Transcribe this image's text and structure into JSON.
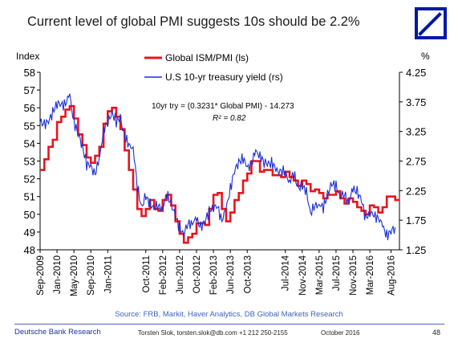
{
  "title": "Current level of global PMI suggests 10s should be 2.2%",
  "logo": {
    "name": "deutsche-bank-logo"
  },
  "colors": {
    "pmi": "#e8141e",
    "yield": "#1a2fd6",
    "brand": "#0018a8",
    "source": "#3f62c2"
  },
  "source": "Source: FRB, Markit, Haver Analytics, DB Global Markets Research",
  "footer": {
    "org": "Deutsche Bank Research",
    "contact": "Torsten Slok, torsten.slok@db.com +1 212 250-2155",
    "date": "October 2016",
    "page": "48"
  },
  "chart_data": {
    "type": "line",
    "y_left_label": "Index",
    "y_right_label": "%",
    "y_left_range": [
      48,
      58
    ],
    "y_right_range": [
      1.25,
      4.25
    ],
    "y_left_ticks": [
      "48",
      "49",
      "50",
      "51",
      "52",
      "53",
      "54",
      "55",
      "56",
      "57",
      "58"
    ],
    "y_right_ticks": [
      "1.25",
      "1.75",
      "2.25",
      "2.75",
      "3.25",
      "3.75",
      "4.25"
    ],
    "x_range": [
      "2009-09",
      "2016-10"
    ],
    "x_ticks": [
      "Sep-2009",
      "Jan-2010",
      "May-2010",
      "Sep-2010",
      "Jan-2011",
      "Oct-2011",
      "Feb-2012",
      "Jun-2012",
      "Oct-2012",
      "Feb-2013",
      "Jun-2013",
      "Oct-2013",
      "Jul-2014",
      "Nov-2014",
      "Mar-2015",
      "Jul-2015",
      "Nov-2015",
      "Mar-2016",
      "Aug-2016"
    ],
    "legend": {
      "placement": "top-left"
    },
    "annotation": {
      "equation": "10yr try = (0.3231* Global PMI) - 14.273",
      "r2": "R² = 0.82"
    },
    "series": [
      {
        "name": "Global ISM/PMI (ls)",
        "axis": "left",
        "x": [
          "2009-09",
          "2009-10",
          "2009-11",
          "2009-12",
          "2010-01",
          "2010-02",
          "2010-03",
          "2010-04",
          "2010-05",
          "2010-06",
          "2010-07",
          "2010-08",
          "2010-09",
          "2010-10",
          "2010-11",
          "2010-12",
          "2011-01",
          "2011-02",
          "2011-03",
          "2011-04",
          "2011-05",
          "2011-06",
          "2011-07",
          "2011-08",
          "2011-09",
          "2011-10",
          "2011-11",
          "2011-12",
          "2012-01",
          "2012-02",
          "2012-03",
          "2012-04",
          "2012-05",
          "2012-06",
          "2012-07",
          "2012-08",
          "2012-09",
          "2012-10",
          "2012-11",
          "2012-12",
          "2013-01",
          "2013-02",
          "2013-03",
          "2013-04",
          "2013-05",
          "2013-06",
          "2013-07",
          "2013-08",
          "2013-09",
          "2013-10",
          "2013-11",
          "2013-12",
          "2014-01",
          "2014-02",
          "2014-03",
          "2014-04",
          "2014-05",
          "2014-06",
          "2014-07",
          "2014-08",
          "2014-09",
          "2014-10",
          "2014-11",
          "2014-12",
          "2015-01",
          "2015-02",
          "2015-03",
          "2015-04",
          "2015-05",
          "2015-06",
          "2015-07",
          "2015-08",
          "2015-09",
          "2015-10",
          "2015-11",
          "2015-12",
          "2016-01",
          "2016-02",
          "2016-03",
          "2016-04",
          "2016-05",
          "2016-06",
          "2016-07",
          "2016-08",
          "2016-09"
        ],
        "values": [
          52.5,
          53.1,
          53.8,
          54.2,
          55.2,
          55.5,
          55.9,
          56.1,
          55.4,
          54.5,
          53.9,
          53.2,
          52.9,
          53.3,
          53.8,
          55.1,
          55.8,
          56.0,
          55.5,
          54.8,
          53.6,
          52.5,
          51.4,
          50.3,
          49.9,
          50.3,
          50.8,
          50.3,
          50.2,
          50.8,
          51.1,
          50.5,
          49.6,
          48.9,
          48.4,
          48.7,
          48.9,
          49.5,
          49.5,
          49.4,
          50.3,
          51.1,
          51.2,
          50.3,
          49.6,
          50.1,
          50.8,
          51.2,
          51.9,
          52.3,
          53.0,
          53.0,
          52.4,
          52.5,
          52.5,
          52.2,
          52.2,
          52.1,
          52.4,
          52.1,
          51.9,
          51.6,
          51.9,
          51.7,
          51.3,
          51.4,
          51.2,
          50.9,
          51.1,
          51.1,
          51.3,
          50.9,
          50.6,
          50.9,
          50.7,
          50.4,
          50.2,
          50.0,
          50.5,
          50.4,
          50.1,
          50.4,
          51.0,
          51.0,
          50.8
        ]
      },
      {
        "name": "U.S 10-yr treasury yield (rs)",
        "axis": "right",
        "x": [
          "2009-09",
          "2009-10",
          "2009-11",
          "2009-12",
          "2010-01",
          "2010-02",
          "2010-03",
          "2010-04",
          "2010-05",
          "2010-06",
          "2010-07",
          "2010-08",
          "2010-09",
          "2010-10",
          "2010-11",
          "2010-12",
          "2011-01",
          "2011-02",
          "2011-03",
          "2011-04",
          "2011-05",
          "2011-06",
          "2011-07",
          "2011-08",
          "2011-09",
          "2011-10",
          "2011-11",
          "2011-12",
          "2012-01",
          "2012-02",
          "2012-03",
          "2012-04",
          "2012-05",
          "2012-06",
          "2012-07",
          "2012-08",
          "2012-09",
          "2012-10",
          "2012-11",
          "2012-12",
          "2013-01",
          "2013-02",
          "2013-03",
          "2013-04",
          "2013-05",
          "2013-06",
          "2013-07",
          "2013-08",
          "2013-09",
          "2013-10",
          "2013-11",
          "2013-12",
          "2014-01",
          "2014-02",
          "2014-03",
          "2014-04",
          "2014-05",
          "2014-06",
          "2014-07",
          "2014-08",
          "2014-09",
          "2014-10",
          "2014-11",
          "2014-12",
          "2015-01",
          "2015-02",
          "2015-03",
          "2015-04",
          "2015-05",
          "2015-06",
          "2015-07",
          "2015-08",
          "2015-09",
          "2015-10",
          "2015-11",
          "2015-12",
          "2016-01",
          "2016-02",
          "2016-03",
          "2016-04",
          "2016-05",
          "2016-06",
          "2016-07",
          "2016-08",
          "2016-09"
        ],
        "values": [
          3.4,
          3.39,
          3.4,
          3.59,
          3.73,
          3.69,
          3.73,
          3.85,
          3.42,
          3.2,
          3.01,
          2.7,
          2.65,
          2.54,
          2.76,
          3.29,
          3.39,
          3.58,
          3.41,
          3.46,
          3.17,
          3.0,
          3.0,
          2.3,
          1.98,
          2.15,
          2.01,
          1.98,
          1.97,
          1.97,
          2.17,
          2.05,
          1.8,
          1.62,
          1.53,
          1.68,
          1.72,
          1.75,
          1.65,
          1.72,
          1.91,
          1.98,
          1.96,
          1.76,
          1.93,
          2.3,
          2.58,
          2.74,
          2.81,
          2.62,
          2.72,
          2.9,
          2.86,
          2.71,
          2.72,
          2.71,
          2.56,
          2.6,
          2.54,
          2.42,
          2.53,
          2.3,
          2.33,
          2.21,
          1.88,
          1.98,
          2.04,
          1.94,
          2.2,
          2.36,
          2.32,
          2.17,
          2.17,
          2.07,
          2.26,
          2.24,
          2.09,
          1.78,
          1.89,
          1.81,
          1.81,
          1.64,
          1.5,
          1.56,
          1.63
        ]
      }
    ]
  }
}
